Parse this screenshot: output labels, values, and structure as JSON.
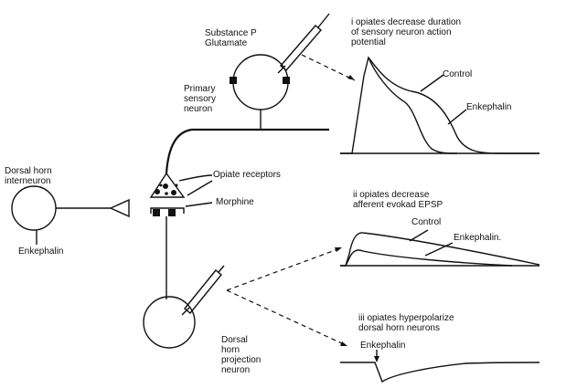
{
  "labels": {
    "substance_p": "Substance P",
    "glutamate": "Glutamate",
    "primary_1": "Primary",
    "primary_2": "sensory",
    "primary_3": "neuron",
    "dh_inter_1": "Dorsal horn",
    "dh_inter_2": "interneuron",
    "enkephalin_left": "Enkephalin",
    "opiate_receptors": "Opiate receptors",
    "morphine": "Morphine",
    "dh_proj_1": "Dorsal",
    "dh_proj_2": "horn",
    "dh_proj_3": "projection",
    "dh_proj_4": "neuron"
  },
  "panels": {
    "p1": {
      "t1": "i opiates decrease duration",
      "t2": "of sensory neuron action",
      "t3": "potential",
      "control": "Control",
      "enkephalin": "Enkephalin"
    },
    "p2": {
      "t1": "ii opiates decrease",
      "t2": "afferent evokad EPSP",
      "control": "Control",
      "enkephalin": "Enkephalin."
    },
    "p3": {
      "t1": "iii opiates hyperpolarize",
      "t2": "dorsal horn neurons",
      "enkephalin": "Enkephalin"
    }
  }
}
